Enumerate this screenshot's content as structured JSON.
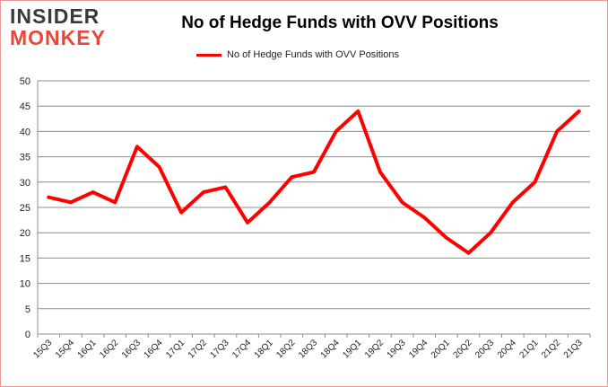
{
  "logo": {
    "line1": "INSIDER",
    "line2": "MONKEY"
  },
  "chart_data": {
    "type": "line",
    "title": "No of Hedge Funds with OVV Positions",
    "xlabel": "",
    "ylabel": "",
    "ylim": [
      0,
      50
    ],
    "yticks": [
      0,
      5,
      10,
      15,
      20,
      25,
      30,
      35,
      40,
      45,
      50
    ],
    "grid": true,
    "legend": "top",
    "categories": [
      "15Q3",
      "15Q4",
      "16Q1",
      "16Q2",
      "16Q3",
      "16Q4",
      "17Q1",
      "17Q2",
      "17Q3",
      "17Q4",
      "18Q1",
      "18Q2",
      "18Q3",
      "18Q4",
      "19Q1",
      "19Q2",
      "19Q3",
      "19Q4",
      "20Q1",
      "20Q2",
      "20Q3",
      "20Q4",
      "21Q1",
      "21Q2",
      "21Q3"
    ],
    "series": [
      {
        "name": "No of Hedge Funds with OVV Positions",
        "color": "#ff0000",
        "values": [
          27,
          26,
          28,
          26,
          37,
          33,
          24,
          28,
          29,
          22,
          26,
          31,
          32,
          40,
          44,
          32,
          26,
          23,
          19,
          16,
          20,
          26,
          30,
          40,
          44
        ]
      }
    ]
  }
}
